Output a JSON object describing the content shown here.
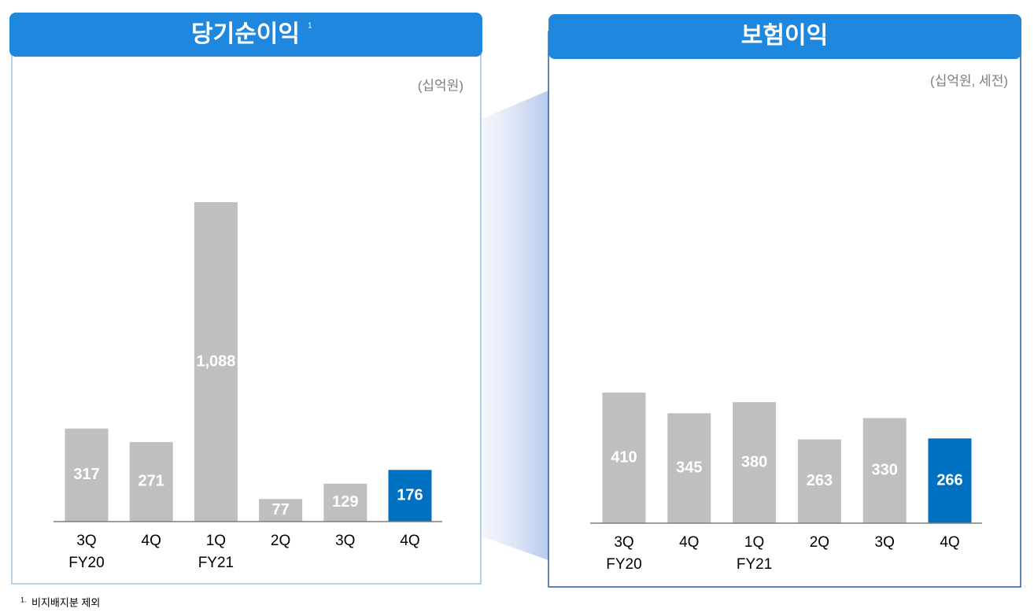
{
  "chart_data": [
    {
      "type": "bar",
      "title": "당기순이익",
      "title_note": "1",
      "unit": "(십억원)",
      "categories": [
        "3Q",
        "4Q",
        "1Q",
        "2Q",
        "3Q",
        "4Q"
      ],
      "group_labels": [
        "FY20",
        null,
        "FY21",
        null,
        null,
        null
      ],
      "values": [
        317,
        271,
        1088,
        77,
        129,
        176
      ],
      "value_labels": [
        "317",
        "271",
        "1,088",
        "77",
        "129",
        "176"
      ],
      "colors": [
        "#bfbfbf",
        "#bfbfbf",
        "#bfbfbf",
        "#bfbfbf",
        "#bfbfbf",
        "#0070c0"
      ]
    },
    {
      "type": "bar",
      "title": "보험이익",
      "unit": "(십억원, 세전)",
      "categories": [
        "3Q",
        "4Q",
        "1Q",
        "2Q",
        "3Q",
        "4Q"
      ],
      "group_labels": [
        "FY20",
        null,
        "FY21",
        null,
        null,
        null
      ],
      "values": [
        410,
        345,
        380,
        263,
        330,
        266
      ],
      "value_labels": [
        "410",
        "345",
        "380",
        "263",
        "330",
        "266"
      ],
      "colors": [
        "#bfbfbf",
        "#bfbfbf",
        "#bfbfbf",
        "#bfbfbf",
        "#bfbfbf",
        "#0070c0"
      ]
    }
  ],
  "footnote": {
    "marker": "1.",
    "text": "비지배지분 제외"
  }
}
